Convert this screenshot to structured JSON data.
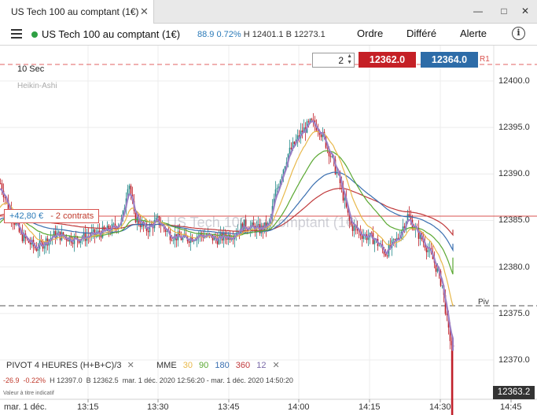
{
  "window": {
    "tab_title": "US Tech 100 au comptant (1€)",
    "close_glyph": "✕",
    "minimize_glyph": "—",
    "maximize_glyph": "□",
    "close_window_glyph": "✕"
  },
  "header": {
    "instrument": "US Tech 100 au comptant (1€)",
    "change_points": "88.9",
    "change_percent": "0.72%",
    "high": "H 12401.1",
    "low": "B 12273.1",
    "buttons": {
      "order": "Ordre",
      "deferred": "Différé",
      "alert": "Alerte"
    },
    "info_glyph": "i"
  },
  "chart": {
    "interval": "10 Sec",
    "candle_type": "Heikin-Ashi",
    "watermark": "US Tech 100 au comptant (1€)",
    "quantity": "2",
    "sell_price": "12362.0",
    "buy_price": "12364.0",
    "r1_label": "R1",
    "pivot_label": "Piv",
    "position_pl": "+42,80 €",
    "position_contracts": "- 2 contrats",
    "current_price": "12363.2",
    "y_ticks": [
      "12400.0",
      "12395.0",
      "12390.0",
      "12385.0",
      "12380.0",
      "12375.0",
      "12370.0"
    ],
    "x_ticks": [
      "13:15",
      "13:30",
      "13:45",
      "14:00",
      "14:15",
      "14:30",
      "14:45"
    ],
    "x_date": "mar. 1 déc.",
    "colors": {
      "up": "#2a8c8c",
      "down": "#c0202a",
      "ma30": "#e8b84a",
      "ma90": "#5aa832",
      "ma180": "#3a6fb0",
      "ma360": "#c0393b",
      "ma12": "#9b7fc4"
    }
  },
  "indicators": {
    "pivot": "PIVOT  4 HEURES  (H+B+C)/3",
    "mme_label": "MME",
    "mme_periods": [
      "30",
      "90",
      "180",
      "360",
      "12"
    ],
    "close_glyph": "✕"
  },
  "info": {
    "change": "-26.9",
    "change_pct": "-0.22%",
    "high": "H 12397.0",
    "low": "B 12362.5",
    "range": "mar. 1 déc. 2020 12:56:20 - mar. 1 déc. 2020 14:50:20",
    "note": "Valeur à titre indicatif"
  }
}
